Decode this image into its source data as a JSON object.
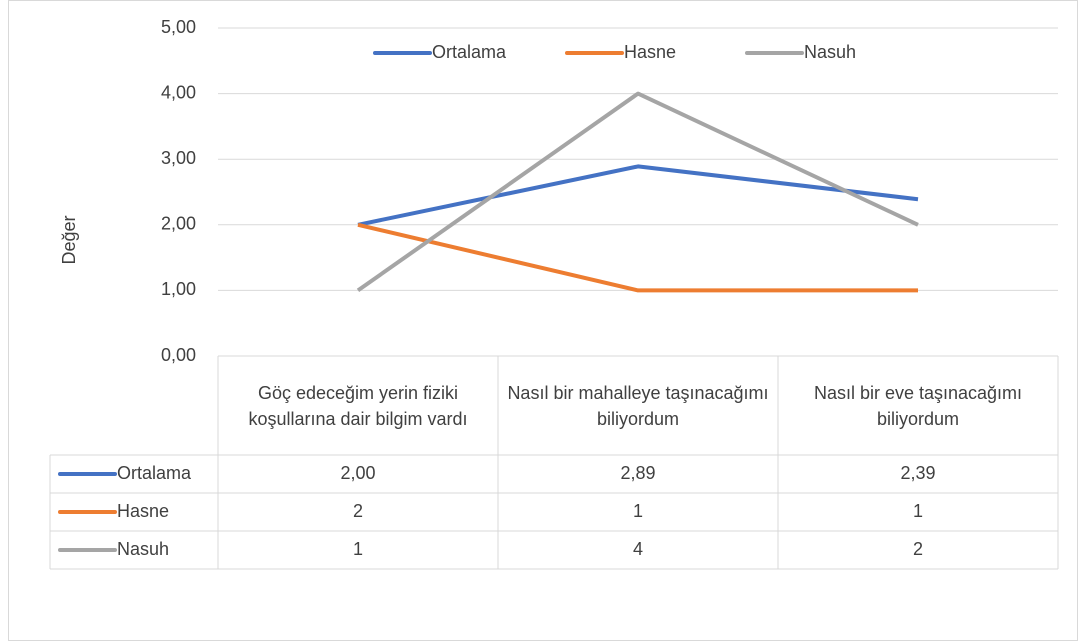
{
  "chart_data": {
    "type": "line",
    "ylabel": "Değer",
    "categories": [
      "Göç edeceğim yerin fiziki koşullarına dair bilgim vardı",
      "Nasıl bir mahalleye taşınacağımı biliyordum",
      "Nasıl bir eve taşınacağımı biliyordum"
    ],
    "series": [
      {
        "name": "Ortalama",
        "color": "#4472c4",
        "values": [
          2.0,
          2.89,
          2.39
        ],
        "value_labels": [
          "2,00",
          "2,89",
          "2,39"
        ]
      },
      {
        "name": "Hasne",
        "color": "#ed7d31",
        "values": [
          2,
          1,
          1
        ]
      },
      {
        "name": "Nasuh",
        "color": "#a5a5a5",
        "values": [
          1,
          4,
          2
        ]
      }
    ],
    "ylim": [
      0,
      5
    ],
    "yticks": [
      {
        "value": 0,
        "label": "0,00"
      },
      {
        "value": 1,
        "label": "1,00"
      },
      {
        "value": 2,
        "label": "2,00"
      },
      {
        "value": 3,
        "label": "3,00"
      },
      {
        "value": 4,
        "label": "4,00"
      },
      {
        "value": 5,
        "label": "5,00"
      }
    ],
    "grid": true,
    "legend": "top"
  }
}
